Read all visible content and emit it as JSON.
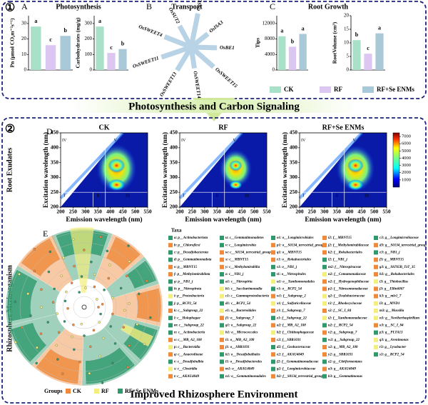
{
  "sections": [
    {
      "number": "①"
    },
    {
      "number": "②"
    }
  ],
  "panels": [
    {
      "letter": "A",
      "title": "Photosynthesis"
    },
    {
      "letter": "B",
      "title": "Transport"
    },
    {
      "letter": "C",
      "title": "Root Growth"
    },
    {
      "letter": "D"
    },
    {
      "letter": "E"
    }
  ],
  "bar_legend": {
    "labels": [
      "CK",
      "RF",
      "RF+Se ENMs"
    ],
    "colors": [
      "#a8e0c8",
      "#dcc6f2",
      "#a9c8d8"
    ]
  },
  "chart_data": [
    {
      "type": "bar",
      "y_label": "Pn (μmol CO₂m⁻²s⁻¹)",
      "values": [
        28,
        16,
        22
      ],
      "annotations": [
        "a",
        "c",
        "b"
      ],
      "ylim": [
        0,
        35
      ],
      "yticks": [
        0,
        10,
        20,
        30
      ]
    },
    {
      "type": "bar",
      "y_label": "Carbohydrates (mg/g)",
      "values": [
        280,
        110,
        135
      ],
      "annotations": [
        "a",
        "c",
        "b"
      ],
      "ylim": [
        0,
        350
      ],
      "yticks": [
        0,
        100,
        200,
        300
      ]
    },
    {
      "type": "bar",
      "y_label": "Tips",
      "values": [
        8700,
        6000,
        9300
      ],
      "annotations": [
        "a",
        "b",
        "a"
      ],
      "ylim": [
        0,
        14000
      ],
      "yticks": [
        0,
        4000,
        8000,
        12000
      ]
    },
    {
      "type": "bar",
      "y_label": "RootVolume (cm³)",
      "values": [
        11,
        6,
        13.5
      ],
      "annotations": [
        "b",
        "c",
        "a"
      ],
      "ylim": [
        0,
        20
      ],
      "yticks": [
        0,
        5,
        10,
        15,
        20
      ]
    }
  ],
  "transport_genes": [
    "OsSUT2",
    "OsSUT1",
    "OsISA3",
    "OsBE1",
    "OsSWEET15",
    "OsSWEET14",
    "OsSWEET13",
    "OsSWEET11",
    "OsSWEET4"
  ],
  "banner": "Photosynthesis and Carbon Signaling",
  "side_labels": [
    "Root Exudates",
    "Rhizosphere Mcrioorganism"
  ],
  "eem": {
    "titles": [
      "CK",
      "RF",
      "RF+Se ENMs"
    ],
    "x_label": "Emission wavelength (nm)",
    "y_label": "Excitation wavelength (nm)",
    "xlim": [
      200,
      550
    ],
    "ylim": [
      200,
      450
    ],
    "xticks": [
      200,
      250,
      300,
      350,
      400,
      450,
      500,
      550
    ],
    "yticks": [
      200,
      250,
      300,
      350,
      400,
      450
    ],
    "regions": [
      "I",
      "II",
      "III",
      "IV",
      "V"
    ],
    "clim": [
      0,
      7500
    ],
    "cticks": [
      1000,
      2000,
      3000,
      4000,
      5000,
      6000,
      7000
    ]
  },
  "taxa": {
    "title": "Taxa",
    "items": [
      "a: p__Actinobacteriota",
      "b: p__Chloroflexi",
      "c: p__Desulfobacterota",
      "d: p__Gemmatimonadota",
      "e: p__MBNT15",
      "f: p__Methylomirabilota",
      "g: p__NB1_j",
      "h: p__Nitrospirota",
      "i: p__Proteobacteria",
      "j: p__RCP2_54",
      "k: c__Subgroup_22",
      "l: c__Holophagae",
      "m: c__Subgroup_22",
      "n: c__Actinobacteria",
      "o: c__MB_A2_108",
      "p: c__Bacteroidia",
      "q: c__Anaerolineae",
      "r: c__Desulfobulbia",
      "s: c__Clostridia",
      "t: c__AKAU4049",
      "u: c__Gemmatimonadetes",
      "v: c__Longimicrobia",
      "w: c__S0134_terrestrial_group",
      "x: c__MBNT15",
      "y: c__Methylomirabilia",
      "z: c__NB1_j",
      "a1: c__Nitrospiria",
      "b1: c__Saccharimonadia",
      "c1: c__Gammaproteobacteria",
      "d1: c__RCP2_54",
      "e1: o__Bacteroidales",
      "f1: o__Subgroup_7",
      "g1: o__Subgroup_22",
      "h1: o__Micrococcales",
      "i1: o__MB_A2_108",
      "j1: o__SBR1031",
      "k1: o__Desulfobulbales",
      "l1: o__Desulfobacterales",
      "m1: o__AKAU4049",
      "n1: o__Gemmatimonadales",
      "o1: o__Longimicrobiales",
      "p1: o__S0134_terrestrial_group",
      "q1: o__MBNT15",
      "r1: o__Rokubacteriales",
      "s1: o__NB1_j",
      "t1: o__Nitrospirales",
      "u1: o__Xanthomonadales",
      "v1: o__RCP2_54",
      "w1: f__Subgroup_2",
      "x1: f__Sulfuricellaceae",
      "y1: f__Subgroup_7",
      "z1: f__Subgroup_22",
      "a2: f__MB_A2_108",
      "b2: f__Chitinophagaceae",
      "c2: f__SBR1031",
      "d2: f__Geobacteraceae",
      "e2: f__AKAU4049",
      "f2: f__Gemmatimonadaceae",
      "g2: f__Longimicrobiaceae",
      "h2: f__S0134_terrestrial_group",
      "i2: f__MBNT15",
      "j2: f__Methylomirabilaceae",
      "k2: f__Rokubacteriales",
      "l2: f__NB1_j",
      "m2: f__Nitrospiraceae",
      "n2: f__Comamonadaceae",
      "o2: f__Hydrogenophilaceae",
      "p2: f__Nitrosomonadaceae",
      "q2: f__Oxalobacteraceae",
      "r2: f__Rhodocyclaceae",
      "s2: f__SC_I_84",
      "t2: f__Xanthomonadaceae",
      "u2: f__RCP2_54",
      "v2: g__Subgroup_7",
      "w2: g__Subgroup_22",
      "x2: g__MB_A2_108",
      "y2: g__SBR1031",
      "z2: g__Citrifermentans",
      "a3: g__AKAU4049",
      "b3: g__Gemmatimonas",
      "c3: g__Longimicrobiaceae",
      "d3: g__S0134_terrestrial_group",
      "e3: g__NB1_j",
      "f3: g__MBNT15",
      "g3: g__Sh765B_TzT_35",
      "h3: g__Rokubacteriales",
      "i3: g__Thiobacillus",
      "j3: g__Ellin6067",
      "k3: g__mle1_7",
      "l3: g__MND1",
      "m3: g__Massilia",
      "n3: g__Noviherbaspirillum",
      "o3: g__SC_I_84",
      "p3: g__PLTA13",
      "q3: g__Arenimonas",
      "r3: g__Lysobacter",
      "s3: g__RCP2_54"
    ],
    "groups": [
      2,
      0,
      2,
      2,
      0,
      0,
      2,
      2,
      1,
      2,
      0,
      2,
      2,
      2,
      0,
      1,
      0,
      2,
      1,
      0,
      2,
      2,
      0,
      0,
      0,
      2,
      2,
      1,
      1,
      2,
      1,
      0,
      2,
      1,
      0,
      0,
      2,
      2,
      0,
      2,
      2,
      0,
      0,
      0,
      2,
      2,
      1,
      2,
      0,
      1,
      0,
      2,
      0,
      1,
      0,
      2,
      0,
      2,
      2,
      0,
      0,
      0,
      0,
      2,
      2,
      1,
      0,
      0,
      1,
      1,
      0,
      1,
      2,
      0,
      2,
      0,
      0,
      2,
      0,
      2,
      2,
      0,
      2,
      0,
      0,
      0,
      1,
      0,
      0,
      1,
      1,
      1,
      0,
      2,
      1,
      1,
      2
    ]
  },
  "group_legend": {
    "title": "Groups",
    "labels": [
      "CK",
      "RF",
      "RF+Se ENMs"
    ],
    "colors": [
      "#f08a3a",
      "#f4ee7c",
      "#2e9a6c"
    ]
  },
  "footer": "Improved Rhizosphere Environment"
}
